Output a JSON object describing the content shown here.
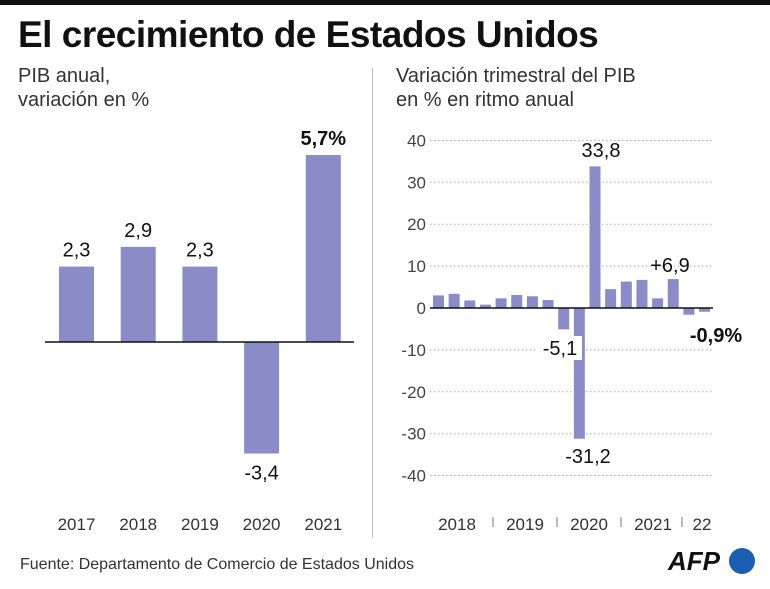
{
  "title": "El crecimiento de Estados Unidos",
  "footer": "Fuente: Departamento de Comercio de Estados Unidos",
  "logo": "AFP",
  "colors": {
    "bar": "#8a8cc8",
    "axis": "#111111",
    "grid": "#aaaaaa"
  },
  "chart_data": [
    {
      "type": "bar",
      "subtitle": [
        "PIB anual,",
        "variación en %"
      ],
      "categories": [
        "2017",
        "2018",
        "2019",
        "2020",
        "2021"
      ],
      "values": [
        2.3,
        2.9,
        2.3,
        -3.4,
        5.7
      ],
      "labels": [
        "2,3",
        "2,9",
        "2,3",
        "-3,4",
        "5,7%"
      ],
      "bold_label_index": 4,
      "ylim": [
        -4,
        6
      ]
    },
    {
      "type": "bar",
      "subtitle": [
        "Variación trimestral del PIB",
        "en % en ritmo anual"
      ],
      "x": [
        "2018 T1",
        "2018 T2",
        "2018 T3",
        "2018 T4",
        "2019 T1",
        "2019 T2",
        "2019 T3",
        "2019 T4",
        "2020 T1",
        "2020 T2",
        "2020 T3",
        "2020 T4",
        "2021 T1",
        "2021 T2",
        "2021 T3",
        "2021 T4",
        "2022 T1",
        "2022 T2"
      ],
      "values": [
        3.0,
        3.4,
        1.8,
        0.8,
        2.3,
        3.1,
        2.8,
        1.9,
        -5.1,
        -31.2,
        33.8,
        4.5,
        6.3,
        6.7,
        2.3,
        6.9,
        -1.6,
        -0.9
      ],
      "annotations": [
        {
          "index": 8,
          "text": "-5,1"
        },
        {
          "index": 9,
          "text": "-31,2"
        },
        {
          "index": 10,
          "text": "33,8"
        },
        {
          "index": 15,
          "text": "+6,9"
        },
        {
          "index": 17,
          "text": "-0,9%",
          "bold": true
        }
      ],
      "year_labels": [
        "2018",
        "2019",
        "2020",
        "2021",
        "22"
      ],
      "yticks": [
        40,
        30,
        20,
        10,
        0,
        -10,
        -20,
        -30,
        -40
      ],
      "ytick_labels": [
        "40",
        "30",
        "20",
        "10",
        "0",
        "-10",
        "-20",
        "-30",
        "-40"
      ],
      "ylim": [
        -40,
        40
      ],
      "grid": true
    }
  ]
}
